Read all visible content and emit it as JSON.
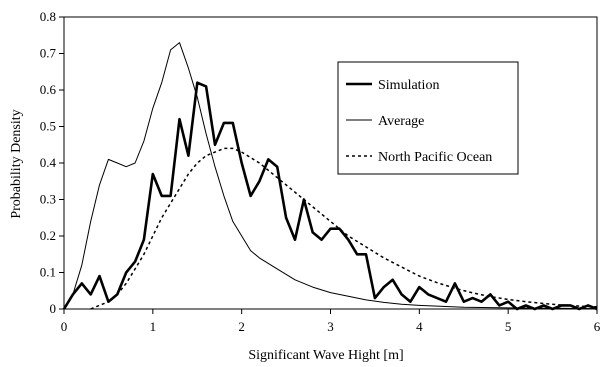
{
  "chart_data": {
    "type": "line",
    "title": "",
    "xlabel": "Significant Wave Hight [m]",
    "ylabel": "Probability Density",
    "xlim": [
      0,
      6
    ],
    "ylim": [
      0,
      0.8
    ],
    "xticks": [
      "0",
      "1",
      "2",
      "3",
      "4",
      "5",
      "6"
    ],
    "yticks": [
      "0",
      "0.1",
      "0.2",
      "0.3",
      "0.4",
      "0.5",
      "0.6",
      "0.7",
      "0.8"
    ],
    "grid": false,
    "legend_position": "top-right",
    "series": [
      {
        "name": "Simulation",
        "style": "thick-solid",
        "color": "#000000",
        "x": [
          0,
          0.1,
          0.2,
          0.3,
          0.4,
          0.5,
          0.6,
          0.7,
          0.8,
          0.9,
          1.0,
          1.1,
          1.2,
          1.3,
          1.4,
          1.5,
          1.6,
          1.7,
          1.8,
          1.9,
          2.0,
          2.1,
          2.2,
          2.3,
          2.4,
          2.5,
          2.6,
          2.7,
          2.8,
          2.9,
          3.0,
          3.1,
          3.2,
          3.3,
          3.4,
          3.5,
          3.6,
          3.7,
          3.8,
          3.9,
          4.0,
          4.1,
          4.2,
          4.3,
          4.4,
          4.5,
          4.6,
          4.7,
          4.8,
          4.9,
          5.0,
          5.1,
          5.2,
          5.3,
          5.4,
          5.5,
          5.6,
          5.7,
          5.8,
          5.9,
          6.0
        ],
        "y": [
          0,
          0.04,
          0.07,
          0.04,
          0.09,
          0.02,
          0.04,
          0.1,
          0.13,
          0.19,
          0.37,
          0.31,
          0.31,
          0.52,
          0.42,
          0.62,
          0.61,
          0.45,
          0.51,
          0.51,
          0.4,
          0.31,
          0.35,
          0.41,
          0.39,
          0.25,
          0.19,
          0.3,
          0.21,
          0.19,
          0.22,
          0.22,
          0.19,
          0.15,
          0.15,
          0.03,
          0.06,
          0.08,
          0.04,
          0.02,
          0.06,
          0.04,
          0.03,
          0.02,
          0.07,
          0.02,
          0.03,
          0.02,
          0.04,
          0.01,
          0.02,
          0.0,
          0.01,
          0.0,
          0.01,
          0.0,
          0.01,
          0.01,
          0.0,
          0.01,
          0.0
        ]
      },
      {
        "name": "Average",
        "style": "thin-solid",
        "color": "#000000",
        "x": [
          0,
          0.1,
          0.2,
          0.3,
          0.4,
          0.5,
          0.6,
          0.7,
          0.8,
          0.9,
          1.0,
          1.1,
          1.2,
          1.3,
          1.4,
          1.5,
          1.6,
          1.7,
          1.8,
          1.9,
          2.0,
          2.1,
          2.2,
          2.4,
          2.6,
          2.8,
          3.0,
          3.2,
          3.4,
          3.6,
          3.8,
          4.0,
          4.5,
          5.0,
          5.5,
          6.0
        ],
        "y": [
          0,
          0.04,
          0.12,
          0.24,
          0.34,
          0.41,
          0.4,
          0.39,
          0.4,
          0.46,
          0.55,
          0.62,
          0.71,
          0.73,
          0.66,
          0.58,
          0.48,
          0.39,
          0.31,
          0.24,
          0.2,
          0.16,
          0.14,
          0.11,
          0.08,
          0.06,
          0.045,
          0.035,
          0.025,
          0.018,
          0.013,
          0.01,
          0.005,
          0.003,
          0.002,
          0.001
        ]
      },
      {
        "name": "North Pacific Ocean",
        "style": "dotted",
        "color": "#000000",
        "x": [
          0.3,
          0.4,
          0.5,
          0.6,
          0.7,
          0.8,
          0.9,
          1.0,
          1.1,
          1.2,
          1.3,
          1.4,
          1.5,
          1.6,
          1.7,
          1.8,
          1.9,
          2.0,
          2.2,
          2.4,
          2.6,
          2.8,
          3.0,
          3.2,
          3.4,
          3.6,
          3.8,
          4.0,
          4.2,
          4.4,
          4.6,
          4.8,
          5.0,
          5.2,
          5.4,
          5.6,
          5.8,
          6.0
        ],
        "y": [
          0.0,
          0.01,
          0.02,
          0.04,
          0.07,
          0.11,
          0.15,
          0.2,
          0.25,
          0.29,
          0.33,
          0.37,
          0.4,
          0.42,
          0.43,
          0.44,
          0.44,
          0.43,
          0.4,
          0.36,
          0.32,
          0.28,
          0.24,
          0.2,
          0.17,
          0.14,
          0.115,
          0.09,
          0.072,
          0.057,
          0.044,
          0.034,
          0.026,
          0.02,
          0.015,
          0.011,
          0.008,
          0.006
        ]
      }
    ]
  }
}
